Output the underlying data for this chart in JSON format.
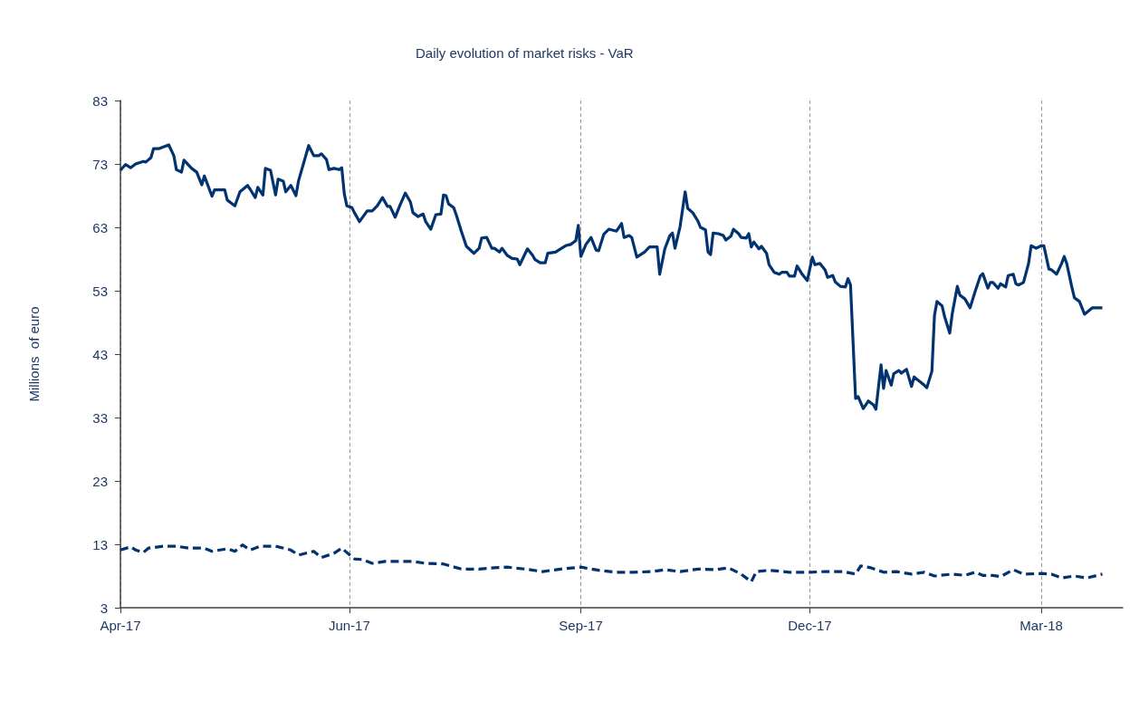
{
  "chart_data": {
    "type": "line",
    "title": "Daily evolution of market risks - VaR",
    "ylabel": "Millions  of euro",
    "xlim": [
      "2017-04-01",
      "2018-04-30"
    ],
    "xticks": [
      {
        "value": "2017-04-01",
        "label": "Apr-17"
      },
      {
        "value": "2017-06-30",
        "label": "Jun-17"
      },
      {
        "value": "2017-09-29",
        "label": "Sep-17"
      },
      {
        "value": "2017-12-28",
        "label": "Dec-17"
      },
      {
        "value": "2018-03-29",
        "label": "Mar-18"
      }
    ],
    "ylim": [
      3,
      83
    ],
    "yticks": [
      3,
      13,
      23,
      33,
      43,
      53,
      63,
      73,
      83
    ],
    "grid": "x",
    "marker": "none",
    "series": [
      {
        "color": "#003370",
        "line_style": "solid",
        "x": [
          "2017-04-01",
          "2017-04-03",
          "2017-04-05",
          "2017-04-07",
          "2017-04-10",
          "2017-04-11",
          "2017-04-13",
          "2017-04-14",
          "2017-04-16",
          "2017-04-20",
          "2017-04-22",
          "2017-04-23",
          "2017-04-25",
          "2017-04-26",
          "2017-04-29",
          "2017-05-01",
          "2017-05-03",
          "2017-05-04",
          "2017-05-07",
          "2017-05-08",
          "2017-05-10",
          "2017-05-12",
          "2017-05-13",
          "2017-05-16",
          "2017-05-18",
          "2017-05-21",
          "2017-05-22",
          "2017-05-24",
          "2017-05-25",
          "2017-05-27",
          "2017-05-28",
          "2017-05-30",
          "2017-06-01",
          "2017-06-02",
          "2017-06-04",
          "2017-06-05",
          "2017-06-07",
          "2017-06-09",
          "2017-06-10",
          "2017-06-14",
          "2017-06-16",
          "2017-06-18",
          "2017-06-19",
          "2017-06-21",
          "2017-06-22",
          "2017-06-24",
          "2017-06-26",
          "2017-06-27",
          "2017-06-28",
          "2017-06-29",
          "2017-07-01",
          "2017-07-02",
          "2017-07-04",
          "2017-07-07",
          "2017-07-09",
          "2017-07-11",
          "2017-07-13",
          "2017-07-15",
          "2017-07-16",
          "2017-07-18",
          "2017-07-20",
          "2017-07-22",
          "2017-07-24",
          "2017-07-25",
          "2017-07-27",
          "2017-07-29",
          "2017-07-30",
          "2017-08-01",
          "2017-08-03",
          "2017-08-05",
          "2017-08-06",
          "2017-08-07",
          "2017-08-08",
          "2017-08-10",
          "2017-08-11",
          "2017-08-13",
          "2017-08-15",
          "2017-08-18",
          "2017-08-20",
          "2017-08-21",
          "2017-08-23",
          "2017-08-25",
          "2017-08-26",
          "2017-08-28",
          "2017-08-29",
          "2017-08-31",
          "2017-09-02",
          "2017-09-04",
          "2017-09-05",
          "2017-09-08",
          "2017-09-10",
          "2017-09-11",
          "2017-09-13",
          "2017-09-15",
          "2017-09-16",
          "2017-09-19",
          "2017-09-21",
          "2017-09-23",
          "2017-09-25",
          "2017-09-27",
          "2017-09-28",
          "2017-09-29",
          "2017-10-01",
          "2017-10-03",
          "2017-10-05",
          "2017-10-06",
          "2017-10-08",
          "2017-10-10",
          "2017-10-11",
          "2017-10-13",
          "2017-10-15",
          "2017-10-16",
          "2017-10-18",
          "2017-10-19",
          "2017-10-21",
          "2017-10-24",
          "2017-10-26",
          "2017-10-29",
          "2017-10-30",
          "2017-11-01",
          "2017-11-03",
          "2017-11-04",
          "2017-11-05",
          "2017-11-07",
          "2017-11-09",
          "2017-11-10",
          "2017-11-12",
          "2017-11-14",
          "2017-11-15",
          "2017-11-17",
          "2017-11-18",
          "2017-11-19",
          "2017-11-20",
          "2017-11-22",
          "2017-11-24",
          "2017-11-25",
          "2017-11-27",
          "2017-11-28",
          "2017-11-30",
          "2017-12-01",
          "2017-12-03",
          "2017-12-04",
          "2017-12-05",
          "2017-12-06",
          "2017-12-08",
          "2017-12-09",
          "2017-12-11",
          "2017-12-12",
          "2017-12-14",
          "2017-12-16",
          "2017-12-17",
          "2017-12-19",
          "2017-12-20",
          "2017-12-22",
          "2017-12-23",
          "2017-12-25",
          "2017-12-27",
          "2017-12-29",
          "2017-12-30",
          "2018-01-01",
          "2018-01-03",
          "2018-01-04",
          "2018-01-06",
          "2018-01-07",
          "2018-01-09",
          "2018-01-11",
          "2018-01-12",
          "2018-01-13",
          "2018-01-15",
          "2018-01-16",
          "2018-01-18",
          "2018-01-20",
          "2018-01-22",
          "2018-01-23",
          "2018-01-25",
          "2018-01-26",
          "2018-01-27",
          "2018-01-29",
          "2018-01-30",
          "2018-02-01",
          "2018-02-02",
          "2018-02-04",
          "2018-02-06",
          "2018-02-07",
          "2018-02-11",
          "2018-02-12",
          "2018-02-14",
          "2018-02-15",
          "2018-02-16",
          "2018-02-18",
          "2018-02-19",
          "2018-02-21",
          "2018-02-22",
          "2018-02-24",
          "2018-02-25",
          "2018-02-27",
          "2018-03-01",
          "2018-03-03",
          "2018-03-05",
          "2018-03-06",
          "2018-03-08",
          "2018-03-09",
          "2018-03-10",
          "2018-03-12",
          "2018-03-13",
          "2018-03-15",
          "2018-03-16",
          "2018-03-18",
          "2018-03-19",
          "2018-03-20",
          "2018-03-22",
          "2018-03-24",
          "2018-03-25",
          "2018-03-27",
          "2018-03-29",
          "2018-03-30",
          "2018-04-01",
          "2018-04-02",
          "2018-04-04",
          "2018-04-06",
          "2018-04-07",
          "2018-04-08",
          "2018-04-10",
          "2018-04-11",
          "2018-04-13",
          "2018-04-15",
          "2018-04-18",
          "2018-04-22"
        ],
        "values": [
          72.0,
          72.9,
          72.4,
          73.0,
          73.4,
          73.3,
          74.0,
          75.4,
          75.4,
          76.0,
          74.3,
          72.1,
          71.7,
          73.6,
          72.3,
          71.7,
          69.7,
          71.1,
          67.9,
          68.9,
          68.9,
          68.9,
          67.3,
          66.4,
          68.6,
          69.6,
          69.0,
          67.7,
          69.3,
          68.1,
          72.3,
          72.0,
          68.1,
          70.6,
          70.3,
          68.6,
          69.6,
          68.0,
          70.3,
          75.9,
          74.3,
          74.3,
          74.6,
          73.7,
          72.1,
          72.3,
          72.1,
          72.4,
          68.3,
          66.4,
          66.1,
          65.3,
          63.9,
          65.6,
          65.6,
          66.4,
          67.7,
          66.3,
          66.3,
          64.6,
          66.6,
          68.4,
          67.0,
          65.3,
          64.7,
          65.1,
          63.9,
          62.7,
          65.0,
          65.1,
          68.1,
          68.0,
          66.7,
          66.1,
          65.0,
          62.4,
          60.0,
          58.9,
          59.7,
          61.3,
          61.4,
          59.7,
          59.7,
          59.1,
          59.7,
          58.6,
          58.1,
          58.0,
          57.1,
          59.6,
          58.6,
          57.9,
          57.4,
          57.4,
          58.9,
          59.1,
          59.6,
          60.1,
          60.3,
          60.9,
          63.3,
          58.4,
          60.3,
          61.4,
          59.4,
          59.3,
          61.9,
          62.7,
          62.6,
          62.4,
          63.6,
          61.4,
          61.7,
          61.4,
          58.3,
          59.1,
          59.9,
          59.9,
          55.6,
          59.6,
          61.7,
          62.1,
          59.7,
          63.1,
          68.6,
          66.0,
          65.3,
          64.0,
          63.0,
          62.6,
          59.1,
          58.7,
          62.1,
          62.0,
          61.7,
          61.0,
          61.6,
          62.7,
          62.0,
          61.4,
          61.3,
          62.0,
          59.9,
          60.7,
          59.6,
          60.0,
          58.9,
          57.1,
          55.9,
          55.6,
          55.9,
          55.9,
          55.3,
          55.3,
          56.9,
          55.6,
          54.6,
          58.3,
          57.1,
          57.3,
          56.3,
          55.1,
          55.4,
          54.4,
          53.7,
          53.6,
          54.9,
          53.9,
          36.0,
          36.3,
          34.4,
          35.6,
          35.0,
          34.3,
          41.3,
          37.6,
          40.4,
          38.1,
          39.9,
          40.4,
          40.0,
          40.6,
          37.9,
          39.4,
          38.1,
          37.7,
          40.3,
          49.1,
          51.3,
          50.6,
          48.9,
          46.3,
          49.4,
          53.7,
          52.3,
          51.7,
          50.3,
          52.9,
          55.3,
          55.7,
          53.4,
          54.3,
          54.3,
          53.4,
          54.1,
          53.6,
          55.4,
          55.6,
          54.1,
          53.9,
          54.3,
          57.3,
          60.1,
          59.7,
          60.1,
          60.1,
          56.4,
          56.3,
          55.6,
          57.3,
          58.4,
          57.3,
          53.6,
          51.9,
          51.3,
          49.3,
          50.3,
          50.3
        ]
      },
      {
        "color": "#003370",
        "line_style": "dashed",
        "x": [
          "2017-04-01",
          "2017-04-05",
          "2017-04-07",
          "2017-04-10",
          "2017-04-12",
          "2017-04-18",
          "2017-04-23",
          "2017-04-28",
          "2017-05-04",
          "2017-05-07",
          "2017-05-13",
          "2017-05-16",
          "2017-05-19",
          "2017-05-22",
          "2017-05-26",
          "2017-06-01",
          "2017-06-07",
          "2017-06-10",
          "2017-06-16",
          "2017-06-19",
          "2017-06-24",
          "2017-06-27",
          "2017-07-02",
          "2017-07-05",
          "2017-07-09",
          "2017-07-14",
          "2017-07-19",
          "2017-07-25",
          "2017-07-30",
          "2017-08-06",
          "2017-08-13",
          "2017-08-20",
          "2017-08-26",
          "2017-08-31",
          "2017-09-07",
          "2017-09-14",
          "2017-09-21",
          "2017-09-29",
          "2017-10-06",
          "2017-10-13",
          "2017-10-20",
          "2017-10-27",
          "2017-11-01",
          "2017-11-07",
          "2017-11-14",
          "2017-11-21",
          "2017-11-26",
          "2017-12-01",
          "2017-12-05",
          "2017-12-07",
          "2017-12-12",
          "2017-12-20",
          "2017-12-28",
          "2018-01-03",
          "2018-01-10",
          "2018-01-15",
          "2018-01-17",
          "2018-01-21",
          "2018-01-26",
          "2018-01-31",
          "2018-02-06",
          "2018-02-11",
          "2018-02-15",
          "2018-02-22",
          "2018-02-27",
          "2018-03-03",
          "2018-03-06",
          "2018-03-10",
          "2018-03-13",
          "2018-03-18",
          "2018-03-22",
          "2018-03-29",
          "2018-04-02",
          "2018-04-06",
          "2018-04-11",
          "2018-04-16",
          "2018-04-22"
        ],
        "values": [
          12.1,
          12.6,
          12.1,
          11.7,
          12.4,
          12.7,
          12.7,
          12.4,
          12.4,
          11.9,
          12.3,
          11.9,
          12.9,
          12.1,
          12.7,
          12.7,
          12.1,
          11.3,
          11.9,
          10.9,
          11.6,
          12.4,
          10.7,
          10.6,
          10.0,
          10.3,
          10.3,
          10.3,
          10.0,
          9.9,
          9.1,
          9.1,
          9.3,
          9.4,
          9.1,
          8.7,
          9.1,
          9.4,
          8.9,
          8.6,
          8.6,
          8.7,
          9.0,
          8.7,
          9.1,
          9.0,
          9.3,
          8.3,
          7.1,
          8.7,
          8.9,
          8.6,
          8.6,
          8.7,
          8.7,
          8.3,
          9.6,
          9.3,
          8.6,
          8.7,
          8.3,
          8.6,
          8.0,
          8.3,
          8.1,
          8.6,
          8.1,
          8.1,
          7.9,
          9.0,
          8.3,
          8.4,
          8.3,
          7.7,
          8.0,
          7.7,
          8.3
        ]
      }
    ]
  }
}
